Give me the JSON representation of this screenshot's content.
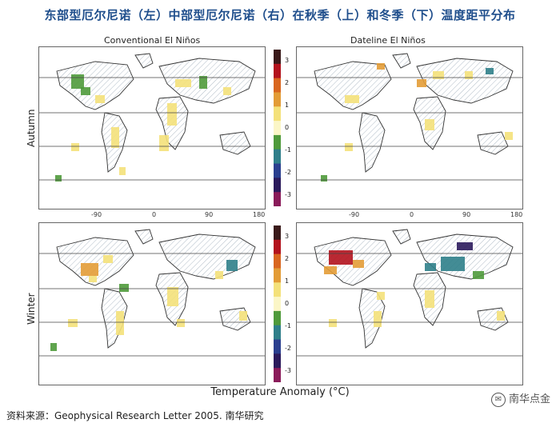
{
  "title": "东部型厄尔尼诺（左）中部型厄尔尼诺（右）在秋季（上）和冬季（下）温度距平分布",
  "panels": {
    "col_titles": [
      "Conventional El Niños",
      "Dateline El Niños"
    ],
    "row_labels": [
      "Autumn",
      "Winter"
    ]
  },
  "x_ticks": [
    "-90",
    "0",
    "90",
    "180"
  ],
  "colorbar": {
    "ticks": [
      "3",
      "2",
      "1",
      "0",
      "-1",
      "-2",
      "-3"
    ],
    "colors": [
      "#3a1a1a",
      "#b3121d",
      "#d9661f",
      "#e39c36",
      "#f4e17a",
      "#fbf6c7",
      "#4f9a3b",
      "#2f7f8a",
      "#2a3f8f",
      "#2b1a5c",
      "#8a1b5a"
    ]
  },
  "xlabel": "Temperature Anomaly (°C)",
  "source": "资料来源：Geophysical Research Letter 2005. 南华研究",
  "watermark": "南华点金",
  "chart_data": [
    {
      "type": "heatmap",
      "title": "Conventional El Niños",
      "row": "Autumn",
      "colorbar_range": [
        -3,
        3
      ],
      "colorbar_ticks": [
        3,
        2,
        1,
        0,
        -1,
        -2,
        -3
      ],
      "x_ticks": [
        -90,
        0,
        90,
        180
      ],
      "xlabel": "Temperature Anomaly (°C)"
    },
    {
      "type": "heatmap",
      "title": "Dateline El Niños",
      "row": "Autumn",
      "colorbar_range": [
        -3,
        3
      ],
      "colorbar_ticks": [
        3,
        2,
        1,
        0,
        -1,
        -2,
        -3
      ],
      "x_ticks": [
        -90,
        0,
        90,
        180
      ]
    },
    {
      "type": "heatmap",
      "title": "Conventional El Niños",
      "row": "Winter",
      "colorbar_range": [
        -3,
        3
      ],
      "colorbar_ticks": [
        3,
        2,
        1,
        0,
        -1,
        -2,
        -3
      ],
      "x_ticks": [
        -90,
        0,
        90,
        180
      ]
    },
    {
      "type": "heatmap",
      "title": "Dateline El Niños",
      "row": "Winter",
      "colorbar_range": [
        -3,
        3
      ],
      "colorbar_ticks": [
        3,
        2,
        1,
        0,
        -1,
        -2,
        -3
      ],
      "x_ticks": [
        -90,
        0,
        90,
        180
      ]
    }
  ]
}
